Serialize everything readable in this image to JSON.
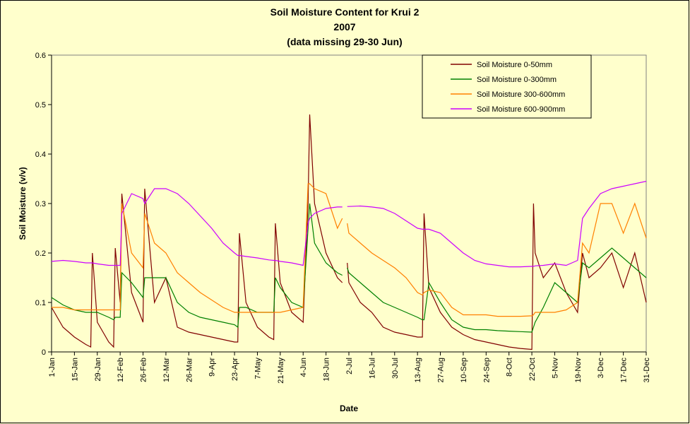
{
  "chart_data": {
    "type": "line",
    "title": "Soil Moisture Content for Krui 2",
    "subtitle": "2007",
    "note": "(data missing 29-30 Jun)",
    "x_label": "Date",
    "y_label": "Soil Moisture (v/v)",
    "x": [
      1,
      8,
      15,
      22,
      25,
      26,
      29,
      36,
      39,
      40,
      43,
      44,
      50,
      57,
      58,
      64,
      71,
      78,
      85,
      92,
      99,
      106,
      113,
      115,
      116,
      120,
      127,
      134,
      137,
      138,
      141,
      148,
      155,
      158,
      159,
      162,
      169,
      176,
      179,
      180,
      182,
      183,
      190,
      197,
      204,
      211,
      218,
      225,
      228,
      229,
      232,
      239,
      246,
      253,
      260,
      267,
      274,
      281,
      288,
      295,
      296,
      297,
      302,
      309,
      316,
      323,
      326,
      330,
      337,
      344,
      351,
      358,
      365
    ],
    "xlim": [
      1,
      365
    ],
    "xticks": [
      {
        "value": 1,
        "label": "1-Jan"
      },
      {
        "value": 15,
        "label": "15-Jan"
      },
      {
        "value": 29,
        "label": "29-Jan"
      },
      {
        "value": 43,
        "label": "12-Feb"
      },
      {
        "value": 57,
        "label": "26-Feb"
      },
      {
        "value": 71,
        "label": "12-Mar"
      },
      {
        "value": 85,
        "label": "26-Mar"
      },
      {
        "value": 99,
        "label": "9-Apr"
      },
      {
        "value": 113,
        "label": "23-Apr"
      },
      {
        "value": 127,
        "label": "7-May"
      },
      {
        "value": 141,
        "label": "21-May"
      },
      {
        "value": 155,
        "label": "4-Jun"
      },
      {
        "value": 169,
        "label": "18-Jun"
      },
      {
        "value": 183,
        "label": "2-Jul"
      },
      {
        "value": 197,
        "label": "16-Jul"
      },
      {
        "value": 211,
        "label": "30-Jul"
      },
      {
        "value": 225,
        "label": "13-Aug"
      },
      {
        "value": 239,
        "label": "27-Aug"
      },
      {
        "value": 253,
        "label": "10-Sep"
      },
      {
        "value": 267,
        "label": "24-Sep"
      },
      {
        "value": 281,
        "label": "8-Oct"
      },
      {
        "value": 295,
        "label": "22-Oct"
      },
      {
        "value": 309,
        "label": "5-Nov"
      },
      {
        "value": 323,
        "label": "19-Nov"
      },
      {
        "value": 337,
        "label": "3-Dec"
      },
      {
        "value": 351,
        "label": "17-Dec"
      },
      {
        "value": 365,
        "label": "31-Dec"
      }
    ],
    "ylim": [
      0,
      0.6
    ],
    "yticks": [
      0,
      0.1,
      0.2,
      0.3,
      0.4,
      0.5,
      0.6
    ],
    "grid": false,
    "legend": "top-right",
    "series": [
      {
        "name": "Soil Moisture 0-50mm",
        "color": "#800000",
        "values": [
          0.09,
          0.05,
          0.03,
          0.015,
          0.01,
          0.2,
          0.06,
          0.02,
          0.01,
          0.21,
          0.1,
          0.32,
          0.12,
          0.06,
          0.33,
          0.1,
          0.15,
          0.05,
          0.04,
          0.035,
          0.03,
          0.025,
          0.02,
          0.02,
          0.24,
          0.1,
          0.05,
          0.03,
          0.025,
          0.26,
          0.14,
          0.08,
          0.06,
          0.3,
          0.48,
          0.3,
          0.2,
          0.15,
          0.14,
          null,
          0.18,
          0.14,
          0.1,
          0.08,
          0.05,
          0.04,
          0.035,
          0.03,
          0.03,
          0.28,
          0.13,
          0.08,
          0.05,
          0.035,
          0.025,
          0.02,
          0.015,
          0.01,
          0.007,
          0.005,
          0.3,
          0.2,
          0.15,
          0.18,
          0.12,
          0.08,
          0.2,
          0.15,
          0.17,
          0.2,
          0.13,
          0.2,
          0.1
        ]
      },
      {
        "name": "Soil Moisture 0-300mm",
        "color": "#008000",
        "values": [
          0.11,
          0.095,
          0.085,
          0.08,
          0.08,
          0.08,
          0.08,
          0.07,
          0.065,
          0.07,
          0.07,
          0.16,
          0.14,
          0.11,
          0.15,
          0.15,
          0.15,
          0.1,
          0.08,
          0.07,
          0.065,
          0.06,
          0.055,
          0.05,
          0.09,
          0.09,
          0.08,
          0.08,
          0.08,
          0.15,
          0.13,
          0.1,
          0.09,
          0.25,
          0.3,
          0.22,
          0.18,
          0.16,
          0.155,
          null,
          0.17,
          0.16,
          0.14,
          0.12,
          0.1,
          0.09,
          0.08,
          0.07,
          0.065,
          0.065,
          0.14,
          0.1,
          0.065,
          0.05,
          0.045,
          0.045,
          0.043,
          0.042,
          0.041,
          0.04,
          0.05,
          0.06,
          0.09,
          0.14,
          0.12,
          0.1,
          0.18,
          0.17,
          0.19,
          0.21,
          0.19,
          0.17,
          0.15
        ]
      },
      {
        "name": "Soil Moisture 300-600mm",
        "color": "#ff8000",
        "values": [
          0.09,
          0.09,
          0.085,
          0.085,
          0.085,
          0.085,
          0.085,
          0.085,
          0.085,
          0.085,
          0.085,
          0.3,
          0.2,
          0.17,
          0.28,
          0.22,
          0.2,
          0.16,
          0.14,
          0.12,
          0.105,
          0.09,
          0.08,
          0.08,
          0.08,
          0.08,
          0.08,
          0.08,
          0.08,
          0.08,
          0.08,
          0.085,
          0.09,
          0.34,
          0.34,
          0.33,
          0.32,
          0.25,
          0.27,
          null,
          0.26,
          0.24,
          0.22,
          0.2,
          0.185,
          0.17,
          0.15,
          0.12,
          0.115,
          0.12,
          0.125,
          0.12,
          0.09,
          0.075,
          0.075,
          0.075,
          0.072,
          0.072,
          0.072,
          0.073,
          0.075,
          0.08,
          0.08,
          0.08,
          0.085,
          0.1,
          0.22,
          0.2,
          0.3,
          0.3,
          0.24,
          0.3,
          0.23
        ]
      },
      {
        "name": "Soil Moisture 600-900mm",
        "color": "#cc00ff",
        "values": [
          0.183,
          0.185,
          0.183,
          0.18,
          0.18,
          0.18,
          0.178,
          0.175,
          0.175,
          0.175,
          0.175,
          0.28,
          0.32,
          0.31,
          0.3,
          0.33,
          0.33,
          0.32,
          0.3,
          0.275,
          0.25,
          0.22,
          0.2,
          0.195,
          0.195,
          0.193,
          0.19,
          0.186,
          0.185,
          0.185,
          0.183,
          0.18,
          0.175,
          0.26,
          0.27,
          0.28,
          0.29,
          0.293,
          0.293,
          null,
          0.294,
          0.294,
          0.295,
          0.293,
          0.29,
          0.28,
          0.265,
          0.25,
          0.248,
          0.248,
          0.248,
          0.24,
          0.22,
          0.2,
          0.185,
          0.178,
          0.175,
          0.172,
          0.172,
          0.173,
          0.173,
          0.174,
          0.175,
          0.178,
          0.175,
          0.185,
          0.27,
          0.29,
          0.32,
          0.33,
          0.335,
          0.34,
          0.345
        ]
      }
    ]
  }
}
